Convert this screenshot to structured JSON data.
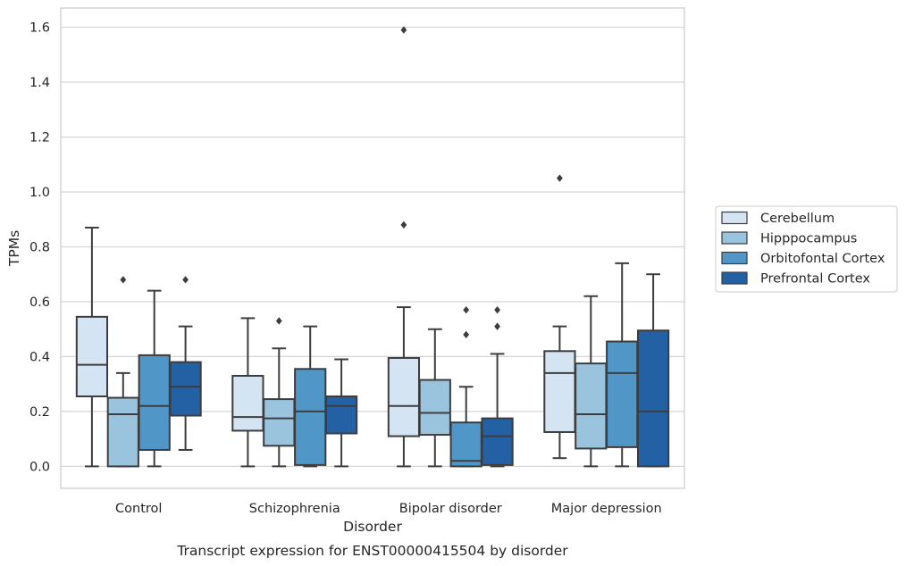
{
  "chart_data": {
    "type": "boxplot",
    "title": "Transcript expression for ENST00000415504 by disorder",
    "xlabel": "Disorder",
    "ylabel": "TPMs",
    "ylim": [
      -0.08,
      1.67
    ],
    "yticks": [
      0.0,
      0.2,
      0.4,
      0.6,
      0.8,
      1.0,
      1.2,
      1.4,
      1.6
    ],
    "grid": "horizontal",
    "legend_position": "right",
    "categories": [
      "Control",
      "Schizophrenia",
      "Bipolar disorder",
      "Major depression"
    ],
    "series": [
      {
        "name": "Cerebellum",
        "color": "#d4e4f2",
        "boxes": [
          {
            "whisker_low": 0.0,
            "q1": 0.255,
            "median": 0.37,
            "q3": 0.545,
            "whisker_high": 0.87,
            "outliers": []
          },
          {
            "whisker_low": 0.0,
            "q1": 0.13,
            "median": 0.18,
            "q3": 0.33,
            "whisker_high": 0.54,
            "outliers": []
          },
          {
            "whisker_low": 0.0,
            "q1": 0.11,
            "median": 0.22,
            "q3": 0.395,
            "whisker_high": 0.58,
            "outliers": [
              0.88,
              1.59
            ]
          },
          {
            "whisker_low": 0.03,
            "q1": 0.125,
            "median": 0.34,
            "q3": 0.42,
            "whisker_high": 0.51,
            "outliers": [
              1.05
            ]
          }
        ]
      },
      {
        "name": "Hipppocampus",
        "color": "#9ac4de",
        "boxes": [
          {
            "whisker_low": 0.0,
            "q1": 0.0,
            "median": 0.19,
            "q3": 0.25,
            "whisker_high": 0.34,
            "outliers": [
              0.68
            ]
          },
          {
            "whisker_low": 0.0,
            "q1": 0.075,
            "median": 0.175,
            "q3": 0.245,
            "whisker_high": 0.43,
            "outliers": [
              0.53
            ]
          },
          {
            "whisker_low": 0.0,
            "q1": 0.115,
            "median": 0.195,
            "q3": 0.315,
            "whisker_high": 0.5,
            "outliers": []
          },
          {
            "whisker_low": 0.0,
            "q1": 0.065,
            "median": 0.19,
            "q3": 0.375,
            "whisker_high": 0.62,
            "outliers": []
          }
        ]
      },
      {
        "name": "Orbitofontal Cortex",
        "color": "#5096c7",
        "boxes": [
          {
            "whisker_low": 0.0,
            "q1": 0.06,
            "median": 0.22,
            "q3": 0.405,
            "whisker_high": 0.64,
            "outliers": []
          },
          {
            "whisker_low": 0.0,
            "q1": 0.005,
            "median": 0.2,
            "q3": 0.355,
            "whisker_high": 0.51,
            "outliers": []
          },
          {
            "whisker_low": 0.0,
            "q1": 0.0,
            "median": 0.02,
            "q3": 0.16,
            "whisker_high": 0.29,
            "outliers": [
              0.48,
              0.57
            ]
          },
          {
            "whisker_low": 0.0,
            "q1": 0.07,
            "median": 0.34,
            "q3": 0.455,
            "whisker_high": 0.74,
            "outliers": []
          }
        ]
      },
      {
        "name": "Prefrontal Cortex",
        "color": "#2461a4",
        "boxes": [
          {
            "whisker_low": 0.06,
            "q1": 0.185,
            "median": 0.29,
            "q3": 0.38,
            "whisker_high": 0.51,
            "outliers": [
              0.68
            ]
          },
          {
            "whisker_low": 0.0,
            "q1": 0.12,
            "median": 0.22,
            "q3": 0.255,
            "whisker_high": 0.39,
            "outliers": []
          },
          {
            "whisker_low": 0.0,
            "q1": 0.005,
            "median": 0.11,
            "q3": 0.175,
            "whisker_high": 0.41,
            "outliers": [
              0.51,
              0.57
            ]
          },
          {
            "whisker_low": 0.0,
            "q1": 0.0,
            "median": 0.2,
            "q3": 0.495,
            "whisker_high": 0.7,
            "outliers": []
          }
        ]
      }
    ]
  }
}
